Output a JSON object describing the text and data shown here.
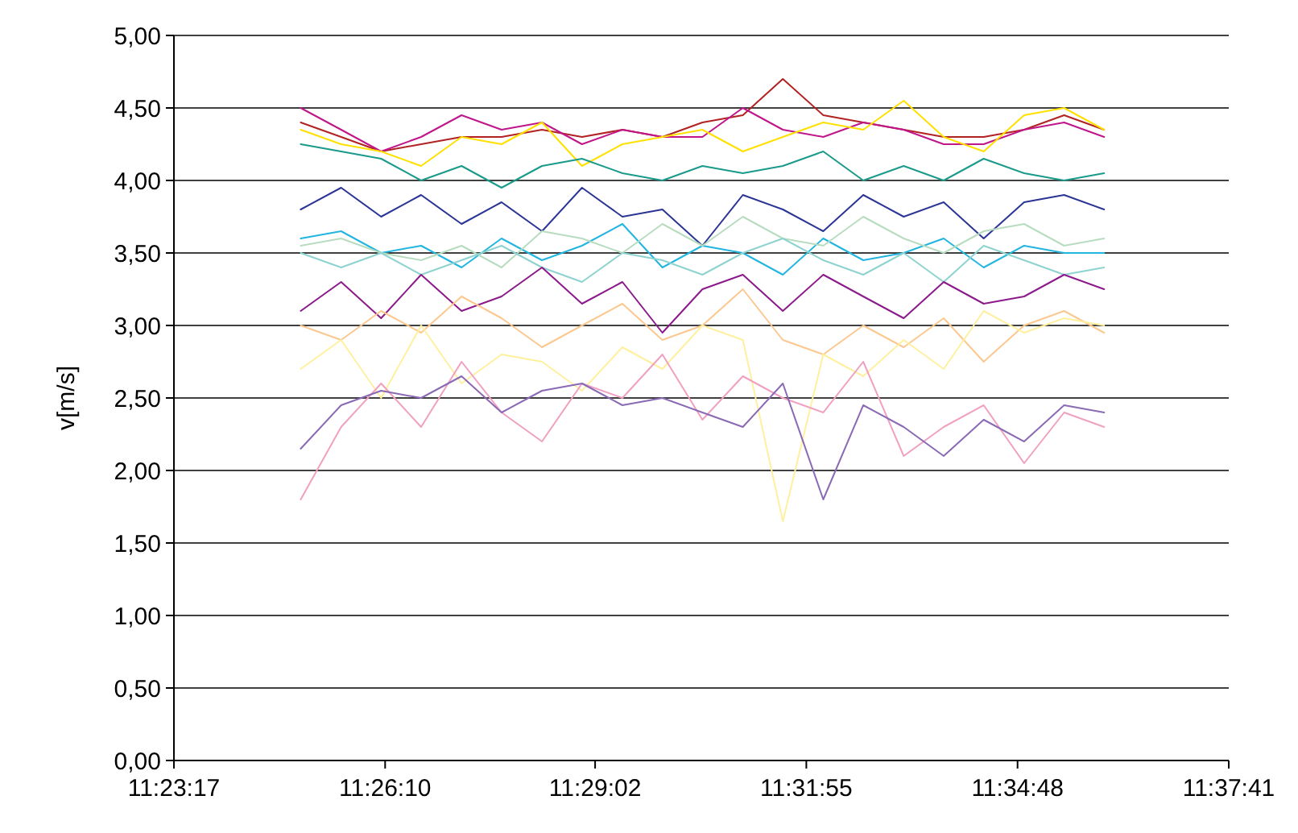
{
  "chart_data": {
    "type": "line",
    "ylabel": "v[m/s]",
    "grid": "y",
    "marker": "none",
    "line_style": "solid",
    "xlim": [
      11.388056,
      11.628056
    ],
    "xticks": [
      {
        "value": 11.388056,
        "label": "11:23:17"
      },
      {
        "value": 11.436111,
        "label": "11:26:10"
      },
      {
        "value": 11.483889,
        "label": "11:29:02"
      },
      {
        "value": 11.531944,
        "label": "11:31:55"
      },
      {
        "value": 11.58,
        "label": "11:34:48"
      },
      {
        "value": 11.628056,
        "label": "11:37:41"
      }
    ],
    "ylim": [
      0,
      5
    ],
    "yticks": [
      {
        "value": 0,
        "label": "0,00"
      },
      {
        "value": 0.5,
        "label": "0,50"
      },
      {
        "value": 1,
        "label": "1,00"
      },
      {
        "value": 1.5,
        "label": "1,50"
      },
      {
        "value": 2,
        "label": "2,00"
      },
      {
        "value": 2.5,
        "label": "2,50"
      },
      {
        "value": 3,
        "label": "3,00"
      },
      {
        "value": 3.5,
        "label": "3,50"
      },
      {
        "value": 4,
        "label": "4,00"
      },
      {
        "value": 4.5,
        "label": "4,50"
      },
      {
        "value": 5,
        "label": "5,00"
      }
    ],
    "x": [
      11.4169,
      11.4261,
      11.4352,
      11.4443,
      11.4535,
      11.4626,
      11.4718,
      11.4809,
      11.4901,
      11.4992,
      11.5083,
      11.5175,
      11.5266,
      11.5358,
      11.5449,
      11.5541,
      11.5632,
      11.5723,
      11.5815,
      11.5906,
      11.5997
    ],
    "series": [
      {
        "color": "#b22222",
        "values": [
          4.4,
          4.3,
          4.2,
          4.25,
          4.3,
          4.3,
          4.35,
          4.3,
          4.35,
          4.3,
          4.4,
          4.45,
          4.7,
          4.45,
          4.4,
          4.35,
          4.3,
          4.3,
          4.35,
          4.45,
          4.35
        ]
      },
      {
        "color": "#c0168a",
        "values": [
          4.5,
          4.35,
          4.2,
          4.3,
          4.45,
          4.35,
          4.4,
          4.25,
          4.35,
          4.3,
          4.3,
          4.5,
          4.35,
          4.3,
          4.4,
          4.35,
          4.25,
          4.25,
          4.35,
          4.4,
          4.3
        ]
      },
      {
        "color": "#ffe000",
        "values": [
          4.35,
          4.25,
          4.2,
          4.1,
          4.3,
          4.25,
          4.4,
          4.1,
          4.25,
          4.3,
          4.35,
          4.2,
          4.3,
          4.4,
          4.35,
          4.55,
          4.3,
          4.2,
          4.45,
          4.5,
          4.35
        ]
      },
      {
        "color": "#1a9a8a",
        "values": [
          4.25,
          4.2,
          4.15,
          4.0,
          4.1,
          3.95,
          4.1,
          4.15,
          4.05,
          4.0,
          4.1,
          4.05,
          4.1,
          4.2,
          4.0,
          4.1,
          4.0,
          4.15,
          4.05,
          4.0,
          4.05
        ]
      },
      {
        "color": "#2b3596",
        "values": [
          3.8,
          3.95,
          3.75,
          3.9,
          3.7,
          3.85,
          3.65,
          3.95,
          3.75,
          3.8,
          3.55,
          3.9,
          3.8,
          3.65,
          3.9,
          3.75,
          3.85,
          3.6,
          3.85,
          3.9,
          3.8
        ]
      },
      {
        "color": "#22b5e0",
        "values": [
          3.6,
          3.65,
          3.5,
          3.55,
          3.4,
          3.6,
          3.45,
          3.55,
          3.7,
          3.4,
          3.55,
          3.5,
          3.35,
          3.6,
          3.45,
          3.5,
          3.6,
          3.4,
          3.55,
          3.5,
          3.5
        ]
      },
      {
        "color": "#b8dcc0",
        "values": [
          3.55,
          3.6,
          3.5,
          3.45,
          3.55,
          3.4,
          3.65,
          3.6,
          3.5,
          3.7,
          3.55,
          3.75,
          3.6,
          3.55,
          3.75,
          3.6,
          3.5,
          3.65,
          3.7,
          3.55,
          3.6
        ]
      },
      {
        "color": "#8fd3d0",
        "values": [
          3.5,
          3.4,
          3.5,
          3.35,
          3.45,
          3.55,
          3.4,
          3.3,
          3.5,
          3.45,
          3.35,
          3.5,
          3.6,
          3.45,
          3.35,
          3.5,
          3.3,
          3.55,
          3.45,
          3.35,
          3.4
        ]
      },
      {
        "color": "#8b1a8b",
        "values": [
          3.1,
          3.3,
          3.05,
          3.35,
          3.1,
          3.2,
          3.4,
          3.15,
          3.3,
          2.95,
          3.25,
          3.35,
          3.1,
          3.35,
          3.2,
          3.05,
          3.3,
          3.15,
          3.2,
          3.35,
          3.25
        ]
      },
      {
        "color": "#fcc890",
        "values": [
          3.0,
          2.9,
          3.1,
          2.95,
          3.2,
          3.05,
          2.85,
          3.0,
          3.15,
          2.9,
          3.0,
          3.25,
          2.9,
          2.8,
          3.0,
          2.85,
          3.05,
          2.75,
          3.0,
          3.1,
          2.95
        ]
      },
      {
        "color": "#fff0a0",
        "values": [
          2.7,
          2.9,
          2.5,
          3.0,
          2.6,
          2.8,
          2.75,
          2.55,
          2.85,
          2.7,
          3.0,
          2.9,
          1.65,
          2.8,
          2.65,
          2.9,
          2.7,
          3.1,
          2.95,
          3.05,
          3.0
        ]
      },
      {
        "color": "#f0a0c0",
        "values": [
          1.8,
          2.3,
          2.6,
          2.3,
          2.75,
          2.4,
          2.2,
          2.6,
          2.5,
          2.8,
          2.35,
          2.65,
          2.5,
          2.4,
          2.75,
          2.1,
          2.3,
          2.45,
          2.05,
          2.4,
          2.3
        ]
      },
      {
        "color": "#8a6ab4",
        "values": [
          2.15,
          2.45,
          2.55,
          2.5,
          2.65,
          2.4,
          2.55,
          2.6,
          2.45,
          2.5,
          2.4,
          2.3,
          2.6,
          1.8,
          2.45,
          2.3,
          2.1,
          2.35,
          2.2,
          2.45,
          2.4
        ]
      }
    ]
  }
}
